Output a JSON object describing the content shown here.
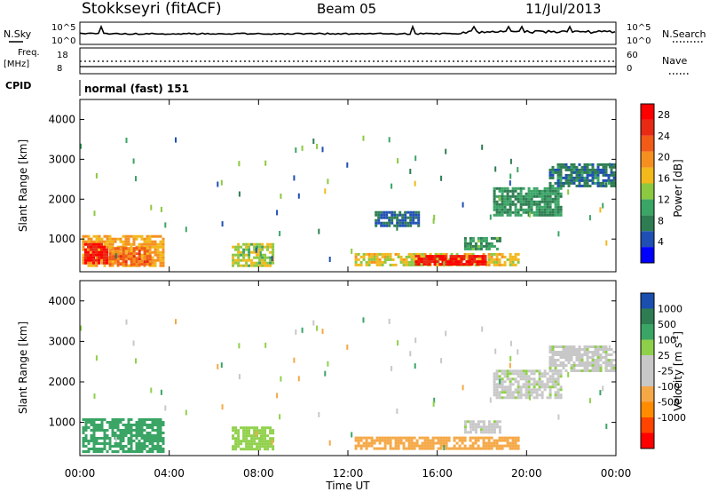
{
  "header": {
    "station": "Stokkseyri (fitACF)",
    "beam": "Beam 05",
    "date": "11/Jul/2013"
  },
  "nsky_panel": {
    "left_label": "N.Sky",
    "right_label": "N.Search",
    "left_ticks": [
      "10^5",
      "10^0"
    ],
    "right_ticks": [
      "10^5",
      "10^0"
    ]
  },
  "freq_panel": {
    "left_label_line1": "Freq.",
    "left_label_line2": "[MHz]",
    "left_ticks": [
      "18",
      "8"
    ],
    "right_label": "Nave",
    "right_ticks": [
      "60",
      "0"
    ]
  },
  "cpid": {
    "label": "CPID",
    "value": "normal (fast) 151"
  },
  "colors": {
    "power": [
      "#0000ff",
      "#1f4fb4",
      "#2e7d52",
      "#3aa565",
      "#8cc840",
      "#f2b81c",
      "#f59020",
      "#f25a18",
      "#e82a14",
      "#ff0000"
    ],
    "velocity": [
      "#ff0000",
      "#ff4400",
      "#ff8c00",
      "#f5a846",
      "#c8c8c8",
      "#c8c8c8",
      "#8fd04a",
      "#3aa565",
      "#2e7d52",
      "#1a4fb0"
    ]
  },
  "chart_data": [
    {
      "type": "heatmap",
      "name": "power",
      "ylabel": "Slant Range [km]",
      "yticks": [
        1000,
        2000,
        3000,
        4000
      ],
      "ylim": [
        180,
        4500
      ],
      "xlim_hours": [
        0,
        24
      ],
      "colorbar": {
        "label": "Power [dB]",
        "ticks": [
          4,
          8,
          12,
          16,
          20,
          24,
          28
        ],
        "range": [
          0,
          30
        ]
      },
      "blobs": [
        {
          "t0": 0.1,
          "t1": 3.7,
          "r0": 300,
          "r1": 1100,
          "v": 18
        },
        {
          "t0": 0.2,
          "t1": 1.2,
          "r0": 400,
          "r1": 900,
          "v": 27
        },
        {
          "t0": 1.3,
          "t1": 3.2,
          "r0": 350,
          "r1": 800,
          "v": 22
        },
        {
          "t0": 6.8,
          "t1": 8.6,
          "r0": 350,
          "r1": 900,
          "v": 14
        },
        {
          "t0": 12.3,
          "t1": 19.6,
          "r0": 350,
          "r1": 650,
          "v": 16
        },
        {
          "t0": 15.0,
          "t1": 18.2,
          "r0": 380,
          "r1": 600,
          "v": 27
        },
        {
          "t0": 17.2,
          "t1": 18.8,
          "r0": 750,
          "r1": 1050,
          "v": 10
        },
        {
          "t0": 18.5,
          "t1": 21.5,
          "r0": 1600,
          "r1": 2300,
          "v": 9
        },
        {
          "t0": 21.0,
          "t1": 23.9,
          "r0": 2300,
          "r1": 2900,
          "v": 7
        },
        {
          "t0": 13.2,
          "t1": 15.2,
          "r0": 1300,
          "r1": 1700,
          "v": 6
        }
      ]
    },
    {
      "type": "heatmap",
      "name": "velocity",
      "ylabel": "Slant Range [km]",
      "xlabel": "Time UT",
      "xticks": [
        "00:00",
        "04:00",
        "08:00",
        "12:00",
        "16:00",
        "20:00",
        "00:00"
      ],
      "yticks": [
        1000,
        2000,
        3000,
        4000
      ],
      "ylim": [
        180,
        4500
      ],
      "xlim_hours": [
        0,
        24
      ],
      "colorbar": {
        "label": "Velocity [m s^-1]",
        "ticks": [
          1000,
          500,
          100,
          25,
          -25,
          -100,
          -500,
          -1000
        ]
      },
      "blobs": [
        {
          "t0": 0.1,
          "t1": 3.7,
          "r0": 300,
          "r1": 1100,
          "v": 150
        },
        {
          "t0": 6.8,
          "t1": 8.6,
          "r0": 350,
          "r1": 900,
          "v": 60
        },
        {
          "t0": 12.3,
          "t1": 19.6,
          "r0": 350,
          "r1": 650,
          "v": -300
        },
        {
          "t0": 17.2,
          "t1": 18.8,
          "r0": 750,
          "r1": 1050,
          "v": 0
        },
        {
          "t0": 18.5,
          "t1": 21.5,
          "r0": 1600,
          "r1": 2300,
          "v": 0
        },
        {
          "t0": 21.0,
          "t1": 23.9,
          "r0": 2300,
          "r1": 2900,
          "v": 0
        }
      ]
    }
  ]
}
